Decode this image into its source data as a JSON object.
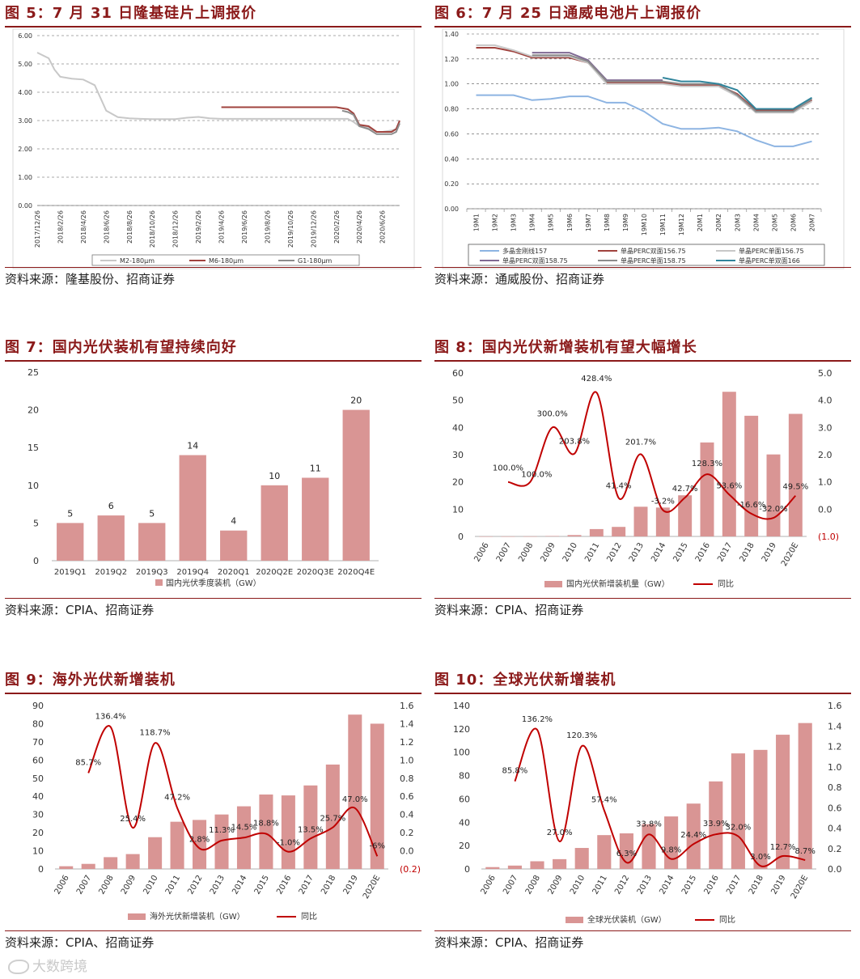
{
  "colors": {
    "title": "#8B1A1A",
    "bar": "#D99594",
    "line_red": "#C00000",
    "neg_label": "#C00000",
    "gray_light": "#BFBFBF",
    "gray_mid": "#8C8C8C",
    "brown_red": "#A0433E",
    "light_blue": "#8DB4E2",
    "purple": "#7F6A93",
    "teal": "#31859C"
  },
  "panels": {
    "p5": {
      "title": "图 5：7 月 31 日隆基硅片上调报价",
      "source": "资料来源：隆基股份、招商证券"
    },
    "p6": {
      "title": "图 6：7 月 25 日通威电池片上调报价",
      "source": "资料来源：通威股份、招商证券"
    },
    "p7": {
      "title": "图 7：国内光伏装机有望持续向好",
      "source": "资料来源：CPIA、招商证券"
    },
    "p8": {
      "title": "图 8：国内光伏新增装机有望大幅增长",
      "source": "资料来源：CPIA、招商证券"
    },
    "p9": {
      "title": "图 9：海外光伏新增装机",
      "source": "资料来源：CPIA、招商证券"
    },
    "p10": {
      "title": "图 10：全球光伏新增装机",
      "source": "资料来源：CPIA、招商证券"
    }
  },
  "watermark": {
    "text": "大数跨境"
  },
  "chart_data": [
    {
      "id": "fig5",
      "type": "line",
      "title": "图 5：7 月 31 日隆基硅片上调报价",
      "x_tick_labels": [
        "2017/12/26",
        "2018/2/26",
        "2018/4/26",
        "2018/6/26",
        "2018/8/26",
        "2018/10/26",
        "2018/12/26",
        "2019/2/26",
        "2019/4/26",
        "2019/6/26",
        "2019/8/26",
        "2019/10/26",
        "2019/12/26",
        "2020/2/26",
        "2020/4/26",
        "2020/6/26"
      ],
      "y_ticks": [
        "0.00",
        "1.00",
        "2.00",
        "3.00",
        "4.00",
        "5.00",
        "6.00"
      ],
      "ylim": [
        0,
        6
      ],
      "x_range_months": [
        0,
        31.5
      ],
      "series": [
        {
          "name": "M2-180μm",
          "color": "#C8C8C8",
          "points": [
            [
              0,
              5.4
            ],
            [
              1,
              5.2
            ],
            [
              1.5,
              4.8
            ],
            [
              2,
              4.55
            ],
            [
              3,
              4.48
            ],
            [
              4,
              4.45
            ],
            [
              5,
              4.25
            ],
            [
              6,
              3.35
            ],
            [
              7,
              3.12
            ],
            [
              8,
              3.08
            ],
            [
              9,
              3.06
            ],
            [
              10,
              3.05
            ],
            [
              11,
              3.05
            ],
            [
              12,
              3.05
            ],
            [
              13,
              3.1
            ],
            [
              14,
              3.13
            ],
            [
              15,
              3.08
            ],
            [
              16,
              3.06
            ],
            [
              17,
              3.06
            ],
            [
              18,
              3.06
            ],
            [
              19,
              3.06
            ],
            [
              20,
              3.06
            ],
            [
              21,
              3.06
            ],
            [
              22,
              3.06
            ],
            [
              23,
              3.06
            ],
            [
              24,
              3.06
            ],
            [
              25,
              3.06
            ],
            [
              26,
              3.06
            ],
            [
              27,
              3.06
            ],
            [
              27.5,
              2.95
            ],
            [
              28,
              2.8
            ],
            [
              28.8,
              2.75
            ],
            [
              29.5,
              2.6
            ],
            [
              30,
              2.6
            ],
            [
              30.8,
              2.65
            ],
            [
              31.2,
              2.7
            ],
            [
              31.5,
              2.95
            ]
          ]
        },
        {
          "name": "M6-180μm",
          "color": "#A0433E",
          "points": [
            [
              16,
              3.47
            ],
            [
              17,
              3.47
            ],
            [
              18,
              3.47
            ],
            [
              19,
              3.47
            ],
            [
              20,
              3.47
            ],
            [
              21,
              3.47
            ],
            [
              22,
              3.47
            ],
            [
              23,
              3.47
            ],
            [
              24,
              3.47
            ],
            [
              25,
              3.47
            ],
            [
              26,
              3.47
            ],
            [
              27,
              3.4
            ],
            [
              27.5,
              3.25
            ],
            [
              28,
              2.85
            ],
            [
              28.8,
              2.8
            ],
            [
              29.5,
              2.6
            ],
            [
              30,
              2.6
            ],
            [
              30.8,
              2.6
            ],
            [
              31.2,
              2.7
            ],
            [
              31.5,
              3.0
            ]
          ]
        },
        {
          "name": "G1-180μm",
          "color": "#8C8C8C",
          "points": [
            [
              26.5,
              3.35
            ],
            [
              27,
              3.3
            ],
            [
              27.5,
              3.2
            ],
            [
              28,
              2.8
            ],
            [
              28.8,
              2.7
            ],
            [
              29.5,
              2.52
            ],
            [
              30,
              2.52
            ],
            [
              30.8,
              2.52
            ],
            [
              31.2,
              2.6
            ],
            [
              31.5,
              2.9
            ]
          ]
        }
      ],
      "legend": "bottom"
    },
    {
      "id": "fig6",
      "type": "line",
      "title": "图 6：7 月 25 日通威电池片上调报价",
      "categories": [
        "19M1",
        "19M2",
        "19M3",
        "19M4",
        "19M5",
        "19M6",
        "19M7",
        "19M8",
        "19M9",
        "19M10",
        "19M11",
        "19M12",
        "20M1",
        "20M2",
        "20M3",
        "20M4",
        "20M5",
        "20M6",
        "20M7"
      ],
      "y_ticks": [
        "0.00",
        "0.20",
        "0.40",
        "0.60",
        "0.80",
        "1.00",
        "1.20",
        "1.40"
      ],
      "ylim": [
        0,
        1.4
      ],
      "series": [
        {
          "name": "多晶金刚线157",
          "color": "#8DB4E2",
          "values": [
            0.91,
            0.91,
            0.91,
            0.87,
            0.88,
            0.9,
            0.9,
            0.85,
            0.85,
            0.78,
            0.68,
            0.64,
            0.64,
            0.65,
            0.62,
            0.55,
            0.5,
            0.5,
            0.54
          ]
        },
        {
          "name": "单晶PERC双面156.75",
          "color": "#A0433E",
          "values": [
            1.29,
            1.29,
            1.26,
            1.21,
            1.21,
            1.21,
            1.17,
            1.01,
            1.01,
            1.01,
            1.01,
            0.99,
            0.99,
            0.99,
            0.92,
            0.79,
            0.79,
            0.79,
            0.87
          ]
        },
        {
          "name": "单晶PERC单面156.75",
          "color": "#C8C8C8",
          "values": [
            1.31,
            1.31,
            1.27,
            1.22,
            1.22,
            1.22,
            1.17,
            1.0,
            1.0,
            1.0,
            1.0,
            0.98,
            0.98,
            0.98,
            0.9,
            0.77,
            0.77,
            0.77,
            0.86
          ]
        },
        {
          "name": "单晶PERC双面158.75",
          "color": "#7F6A93",
          "values": [
            null,
            null,
            null,
            1.25,
            1.25,
            1.25,
            1.19,
            1.03,
            1.03,
            1.03,
            1.03,
            null,
            null,
            null,
            null,
            null,
            null,
            null,
            null
          ]
        },
        {
          "name": "单晶PERC单面158.75",
          "color": "#8C8C8C",
          "values": [
            null,
            null,
            null,
            1.23,
            1.23,
            1.23,
            1.18,
            1.02,
            1.02,
            1.02,
            1.02,
            1.0,
            1.0,
            1.0,
            0.91,
            0.78,
            0.78,
            0.78,
            0.88
          ]
        },
        {
          "name": "单晶PERC单双面166",
          "color": "#31859C",
          "values": [
            null,
            null,
            null,
            null,
            null,
            null,
            null,
            null,
            null,
            null,
            1.05,
            1.02,
            1.02,
            1.0,
            0.95,
            0.8,
            0.8,
            0.8,
            0.89
          ]
        }
      ],
      "legend": "bottom"
    },
    {
      "id": "fig7",
      "type": "bar",
      "title": "图 7：国内光伏装机有望持续向好",
      "categories": [
        "2019Q1",
        "2019Q2",
        "2019Q3",
        "2019Q4",
        "2020Q1",
        "2020Q2E",
        "2020Q3E",
        "2020Q4E"
      ],
      "values": [
        5,
        6,
        5,
        14,
        4,
        10,
        11,
        20
      ],
      "data_labels": [
        "5",
        "6",
        "5",
        "14",
        "4",
        "10",
        "11",
        "20"
      ],
      "y_ticks": [
        "0",
        "5",
        "10",
        "15",
        "20",
        "25"
      ],
      "ylim": [
        0,
        25
      ],
      "legend_label": "国内光伏季度装机（GW）"
    },
    {
      "id": "fig8",
      "type": "bar",
      "title": "图 8：国内光伏新增装机有望大幅增长",
      "categories": [
        "2006",
        "2007",
        "2008",
        "2009",
        "2010",
        "2011",
        "2012",
        "2013",
        "2014",
        "2015",
        "2016",
        "2017",
        "2018",
        "2019",
        "2020E"
      ],
      "bar_values": [
        0.01,
        0.02,
        0.04,
        0.16,
        0.5,
        2.7,
        3.5,
        10.9,
        10.6,
        15.1,
        34.5,
        53.1,
        44.3,
        30.1,
        45
      ],
      "line_values": [
        null,
        1.0,
        1.0,
        3.0,
        2.038,
        4.284,
        0.414,
        2.017,
        -0.032,
        0.427,
        1.283,
        0.536,
        -0.166,
        -0.32,
        0.495
      ],
      "line_labels": [
        "",
        "100.0%",
        "100.0%",
        "300.0%",
        "203.8%",
        "428.4%",
        "41.4%",
        "201.7%",
        "-3.2%",
        "42.7%",
        "128.3%",
        "53.6%",
        "-16.6%",
        "-32.0%",
        "49.5%"
      ],
      "y_left_ticks": [
        "0",
        "10",
        "20",
        "30",
        "40",
        "50",
        "60"
      ],
      "y_right_ticks": [
        "(1.0)",
        "0.0",
        "1.0",
        "2.0",
        "3.0",
        "4.0",
        "5.0"
      ],
      "ylim_left": [
        0,
        60
      ],
      "ylim_right": [
        -1,
        5
      ],
      "legend_bar": "国内光伏新增装机量（GW）",
      "legend_line": "同比"
    },
    {
      "id": "fig9",
      "type": "bar",
      "title": "图 9：海外光伏新增装机",
      "categories": [
        "2006",
        "2007",
        "2008",
        "2009",
        "2010",
        "2011",
        "2012",
        "2013",
        "2014",
        "2015",
        "2016",
        "2017",
        "2018",
        "2019",
        "2020E"
      ],
      "bar_values": [
        1.5,
        2.8,
        6.5,
        8.2,
        17.5,
        26,
        27,
        30,
        34.5,
        41,
        40.5,
        46,
        57.5,
        85,
        80
      ],
      "line_values": [
        null,
        0.857,
        1.364,
        0.254,
        1.187,
        0.472,
        0.028,
        0.113,
        0.145,
        0.188,
        -0.01,
        0.135,
        0.257,
        0.47,
        -0.06
      ],
      "line_labels": [
        "",
        "85.7%",
        "136.4%",
        "25.4%",
        "118.7%",
        "47.2%",
        "2.8%",
        "11.3%",
        "14.5%",
        "18.8%",
        "-1.0%",
        "13.5%",
        "25.7%",
        "47.0%",
        "-6%"
      ],
      "y_left_ticks": [
        "0",
        "10",
        "20",
        "30",
        "40",
        "50",
        "60",
        "70",
        "80",
        "90"
      ],
      "y_right_ticks": [
        "(0.2)",
        "0.0",
        "0.2",
        "0.4",
        "0.6",
        "0.8",
        "1.0",
        "1.2",
        "1.4",
        "1.6"
      ],
      "ylim_left": [
        0,
        90
      ],
      "ylim_right": [
        -0.2,
        1.6
      ],
      "legend_bar": "海外光伏新增装机（GW）",
      "legend_line": "同比"
    },
    {
      "id": "fig10",
      "type": "bar",
      "title": "图 10：全球光伏新增装机",
      "categories": [
        "2006",
        "2007",
        "2008",
        "2009",
        "2010",
        "2011",
        "2012",
        "2013",
        "2014",
        "2015",
        "2016",
        "2017",
        "2018",
        "2019",
        "2020E"
      ],
      "bar_values": [
        1.6,
        2.9,
        6.6,
        8.4,
        18,
        29,
        30.5,
        38.4,
        45,
        56,
        75,
        99,
        102,
        115,
        125
      ],
      "line_values": [
        null,
        0.858,
        1.362,
        0.27,
        1.203,
        0.574,
        0.063,
        0.338,
        0.098,
        0.244,
        0.339,
        0.32,
        0.03,
        0.127,
        0.087
      ],
      "line_labels": [
        "",
        "85.8%",
        "136.2%",
        "27.0%",
        "120.3%",
        "57.4%",
        "6.3%",
        "33.8%",
        "9.8%",
        "24.4%",
        "33.9%",
        "32.0%",
        "3.0%",
        "12.7%",
        "8.7%"
      ],
      "y_left_ticks": [
        "0",
        "20",
        "40",
        "60",
        "80",
        "100",
        "120",
        "140"
      ],
      "y_right_ticks": [
        "0.0",
        "0.2",
        "0.4",
        "0.6",
        "0.8",
        "1.0",
        "1.2",
        "1.4",
        "1.6"
      ],
      "ylim_left": [
        0,
        140
      ],
      "ylim_right": [
        0,
        1.6
      ],
      "legend_bar": "全球光伏装机（GW）",
      "legend_line": "同比"
    }
  ]
}
